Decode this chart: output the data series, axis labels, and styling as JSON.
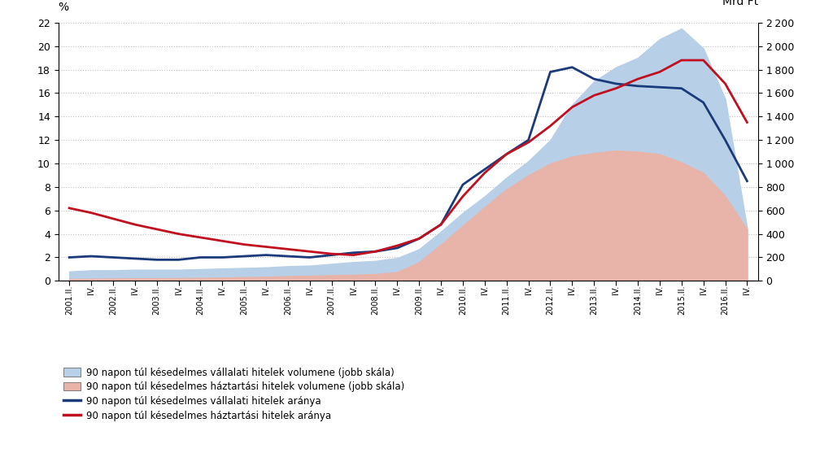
{
  "ylabel_left": "%",
  "ylabel_right": "Mrd Ft",
  "ylim_left": [
    0,
    22
  ],
  "ylim_right": [
    0,
    2200
  ],
  "yticks_left": [
    0,
    2,
    4,
    6,
    8,
    10,
    12,
    14,
    16,
    18,
    20,
    22
  ],
  "yticks_right": [
    0,
    200,
    400,
    600,
    800,
    1000,
    1200,
    1400,
    1600,
    1800,
    2000,
    2200
  ],
  "background_color": "#ffffff",
  "grid_color": "#c0c0c0",
  "vállalati_fill_color": "#b8cfe8",
  "háztartási_fill_color": "#e8b4aa",
  "vállalati_line_color": "#1a3a7a",
  "háztartási_line_color": "#c01020",
  "x_labels": [
    "2001.II.",
    "IV.",
    "2002.II.",
    "IV.",
    "2003.II.",
    "IV.",
    "2004.II.",
    "IV.",
    "2005.II.",
    "IV.",
    "2006.II.",
    "IV.",
    "2007.II.",
    "IV.",
    "2008.II.",
    "IV.",
    "2009.II.",
    "IV.",
    "2010.II.",
    "IV.",
    "2011.II.",
    "IV.",
    "2012.II.",
    "IV.",
    "2013.II.",
    "IV.",
    "2014.II.",
    "IV.",
    "2015.II.",
    "IV.",
    "2016.II.",
    "IV."
  ],
  "vállalati_volume": [
    80,
    90,
    90,
    95,
    95,
    95,
    100,
    105,
    110,
    115,
    125,
    130,
    145,
    160,
    170,
    195,
    270,
    420,
    580,
    720,
    880,
    1020,
    1200,
    1500,
    1700,
    1820,
    1900,
    2060,
    2150,
    1980,
    1550,
    450
  ],
  "háztartási_volume": [
    15,
    18,
    20,
    22,
    22,
    24,
    26,
    28,
    32,
    35,
    40,
    44,
    48,
    52,
    58,
    75,
    160,
    310,
    470,
    630,
    780,
    900,
    1000,
    1060,
    1090,
    1110,
    1100,
    1080,
    1010,
    920,
    720,
    440
  ],
  "vállalati_arány": [
    2.0,
    2.1,
    2.0,
    1.9,
    1.8,
    1.8,
    2.0,
    2.0,
    2.1,
    2.2,
    2.1,
    2.0,
    2.2,
    2.4,
    2.5,
    2.8,
    3.6,
    4.8,
    8.2,
    9.5,
    10.8,
    12.0,
    17.8,
    18.2,
    17.2,
    16.8,
    16.6,
    16.5,
    16.4,
    15.2,
    12.0,
    8.5
  ],
  "háztartási_arány": [
    6.2,
    5.8,
    5.3,
    4.8,
    4.4,
    4.0,
    3.7,
    3.4,
    3.1,
    2.9,
    2.7,
    2.5,
    2.3,
    2.2,
    2.5,
    3.0,
    3.6,
    4.8,
    7.2,
    9.2,
    10.8,
    11.8,
    13.2,
    14.8,
    15.8,
    16.4,
    17.2,
    17.8,
    18.8,
    18.8,
    16.8,
    13.5
  ],
  "legend_entries": [
    "90 napon túl késedelmes vállalati hitelek volumene (jobb skála)",
    "90 napon túl késedelmes háztartási hitelek volumene (jobb skála)",
    "90 napon túl késedelmes vállalati hitelek aránya",
    "90 napon túl késedelmes háztartási hitelek aránya"
  ]
}
